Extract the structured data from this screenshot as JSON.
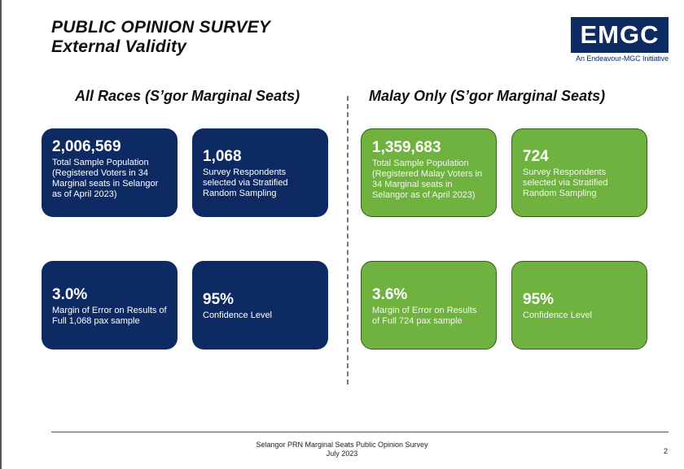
{
  "header": {
    "title_line1": "PUBLIC OPINION SURVEY",
    "title_line2": "External Validity"
  },
  "logo": {
    "name": "EMGC",
    "tagline": "An Endeavour-MGC Initiative"
  },
  "sections": {
    "left_heading": "All Races (S’gor Marginal Seats)",
    "right_heading": "Malay Only (S’gor Marginal Seats)"
  },
  "cards": [
    {
      "value": "2,006,569",
      "desc": "Total Sample Population (Registered Voters in 34 Marginal seats in Selangor as of April 2023)"
    },
    {
      "value": "1,068",
      "desc": "Survey Respondents selected via Stratified Random Sampling"
    },
    {
      "value": "3.0%",
      "desc": "Margin of Error on Results of Full 1,068 pax sample"
    },
    {
      "value": "95%",
      "desc": "Confidence Level"
    },
    {
      "value": "1,359,683",
      "desc": "Total Sample Population (Registered Malay Voters in 34 Marginal seats in Selangor as of April 2023)"
    },
    {
      "value": "724",
      "desc": "Survey Respondents selected via Stratified Random Sampling"
    },
    {
      "value": "3.6%",
      "desc": "Margin of Error on Results of Full 724 pax sample"
    },
    {
      "value": "95%",
      "desc": "Confidence Level"
    }
  ],
  "colors": {
    "navy": "#0e2a63",
    "green": "#6fb23f"
  },
  "footer": {
    "line1": "Selangor PRN Marginal Seats Public Opinion Survey",
    "line2": "July 2023",
    "page_number": "2"
  }
}
